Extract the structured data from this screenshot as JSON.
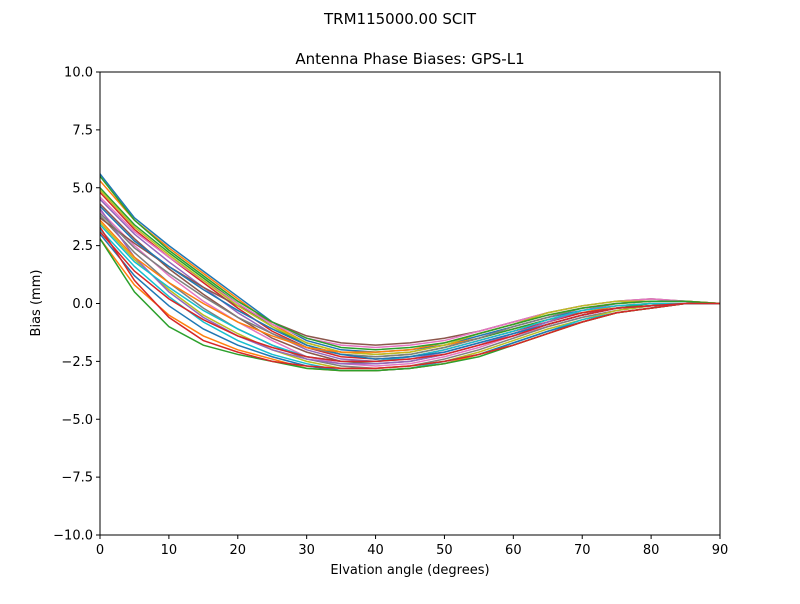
{
  "suptitle": "TRM115000.00    SCIT",
  "chart_data": {
    "type": "line",
    "title": "Antenna Phase Biases: GPS-L1",
    "xlabel": "Elvation angle (degrees)",
    "ylabel": "Bias (mm)",
    "xlim": [
      0,
      90
    ],
    "ylim": [
      -10,
      10
    ],
    "xticks": [
      0,
      10,
      20,
      30,
      40,
      50,
      60,
      70,
      80,
      90
    ],
    "yticks": [
      -10.0,
      -7.5,
      -5.0,
      -2.5,
      0.0,
      2.5,
      5.0,
      7.5,
      10.0
    ],
    "ytick_labels": [
      "−10.0",
      "−7.5",
      "−5.0",
      "−2.5",
      "0.0",
      "2.5",
      "5.0",
      "7.5",
      "10.0"
    ],
    "grid": false,
    "x": [
      0,
      5,
      10,
      15,
      20,
      25,
      30,
      35,
      40,
      45,
      50,
      55,
      60,
      65,
      70,
      75,
      80,
      85,
      90
    ],
    "series_colors": [
      "#1f77b4",
      "#ff7f0e",
      "#2ca02c",
      "#d62728",
      "#9467bd",
      "#8c564b",
      "#e377c2",
      "#7f7f7f",
      "#bcbd22",
      "#17becf"
    ],
    "series": [
      {
        "values": [
          5.6,
          3.7,
          2.5,
          1.4,
          0.3,
          -0.8,
          -1.6,
          -2.0,
          -2.1,
          -2.0,
          -1.8,
          -1.4,
          -1.0,
          -0.6,
          -0.3,
          -0.1,
          0.0,
          0.0,
          0.0
        ]
      },
      {
        "values": [
          5.3,
          3.6,
          2.4,
          1.3,
          0.2,
          -0.9,
          -1.7,
          -2.1,
          -2.2,
          -2.1,
          -1.8,
          -1.5,
          -1.1,
          -0.7,
          -0.4,
          -0.1,
          0.0,
          0.0,
          0.0
        ]
      },
      {
        "values": [
          5.0,
          3.4,
          2.2,
          1.1,
          0.0,
          -1.0,
          -1.8,
          -2.2,
          -2.3,
          -2.2,
          -1.9,
          -1.5,
          -1.1,
          -0.7,
          -0.4,
          -0.2,
          0.0,
          0.0,
          0.0
        ]
      },
      {
        "values": [
          4.8,
          3.2,
          2.0,
          0.9,
          -0.2,
          -1.2,
          -1.9,
          -2.3,
          -2.4,
          -2.3,
          -2.0,
          -1.6,
          -1.2,
          -0.8,
          -0.4,
          -0.2,
          -0.1,
          0.0,
          0.0
        ]
      },
      {
        "values": [
          4.5,
          3.0,
          1.8,
          0.7,
          -0.4,
          -1.3,
          -2.0,
          -2.4,
          -2.5,
          -2.4,
          -2.1,
          -1.7,
          -1.3,
          -0.9,
          -0.5,
          -0.2,
          -0.1,
          0.0,
          0.0
        ]
      },
      {
        "values": [
          4.3,
          2.8,
          1.5,
          0.4,
          -0.6,
          -1.5,
          -2.1,
          -2.5,
          -2.6,
          -2.5,
          -2.2,
          -1.8,
          -1.4,
          -0.9,
          -0.5,
          -0.2,
          -0.1,
          0.0,
          0.0
        ]
      },
      {
        "values": [
          4.0,
          2.5,
          1.2,
          0.1,
          -0.8,
          -1.6,
          -2.3,
          -2.6,
          -2.7,
          -2.6,
          -2.3,
          -1.9,
          -1.4,
          -1.0,
          -0.6,
          -0.3,
          -0.1,
          0.0,
          0.0
        ]
      },
      {
        "values": [
          3.8,
          2.2,
          0.9,
          -0.2,
          -1.1,
          -1.8,
          -2.4,
          -2.7,
          -2.8,
          -2.7,
          -2.4,
          -2.0,
          -1.5,
          -1.0,
          -0.6,
          -0.3,
          -0.1,
          0.0,
          0.0
        ]
      },
      {
        "values": [
          3.5,
          1.9,
          0.6,
          -0.5,
          -1.3,
          -2.0,
          -2.5,
          -2.8,
          -2.8,
          -2.7,
          -2.5,
          -2.1,
          -1.6,
          -1.1,
          -0.7,
          -0.3,
          -0.1,
          0.0,
          0.0
        ]
      },
      {
        "values": [
          3.2,
          1.6,
          0.3,
          -0.8,
          -1.6,
          -2.2,
          -2.6,
          -2.9,
          -2.9,
          -2.8,
          -2.5,
          -2.2,
          -1.7,
          -1.2,
          -0.7,
          -0.4,
          -0.2,
          0.0,
          0.0
        ]
      },
      {
        "values": [
          3.0,
          1.2,
          -0.1,
          -1.1,
          -1.8,
          -2.3,
          -2.7,
          -2.9,
          -2.9,
          -2.8,
          -2.6,
          -2.2,
          -1.7,
          -1.2,
          -0.8,
          -0.4,
          -0.2,
          0.0,
          0.0
        ]
      },
      {
        "values": [
          2.8,
          0.8,
          -0.5,
          -1.4,
          -2.0,
          -2.4,
          -2.8,
          -2.9,
          -2.9,
          -2.8,
          -2.6,
          -2.2,
          -1.8,
          -1.3,
          -0.8,
          -0.4,
          -0.2,
          0.0,
          0.0
        ]
      },
      {
        "values": [
          2.8,
          0.5,
          -1.0,
          -1.8,
          -2.2,
          -2.5,
          -2.8,
          -2.9,
          -2.9,
          -2.8,
          -2.6,
          -2.3,
          -1.8,
          -1.3,
          -0.8,
          -0.4,
          -0.2,
          0.0,
          0.0
        ]
      },
      {
        "values": [
          3.3,
          1.0,
          -0.6,
          -1.6,
          -2.1,
          -2.5,
          -2.7,
          -2.8,
          -2.8,
          -2.7,
          -2.5,
          -2.2,
          -1.8,
          -1.3,
          -0.8,
          -0.4,
          -0.2,
          0.0,
          0.0
        ]
      },
      {
        "values": [
          4.1,
          2.0,
          0.5,
          -0.6,
          -1.4,
          -2.0,
          -2.4,
          -2.6,
          -2.6,
          -2.5,
          -2.2,
          -1.8,
          -1.3,
          -0.8,
          -0.3,
          0.0,
          0.1,
          0.1,
          0.0
        ]
      },
      {
        "values": [
          3.7,
          2.6,
          1.6,
          0.7,
          -0.1,
          -0.8,
          -1.4,
          -1.7,
          -1.8,
          -1.7,
          -1.5,
          -1.2,
          -0.8,
          -0.4,
          -0.1,
          0.1,
          0.2,
          0.1,
          0.0
        ]
      },
      {
        "values": [
          4.6,
          3.1,
          2.0,
          1.0,
          0.0,
          -0.9,
          -1.5,
          -1.8,
          -1.9,
          -1.8,
          -1.6,
          -1.2,
          -0.8,
          -0.4,
          -0.1,
          0.1,
          0.2,
          0.1,
          0.0
        ]
      },
      {
        "values": [
          3.9,
          2.4,
          1.3,
          0.3,
          -0.6,
          -1.3,
          -1.9,
          -2.2,
          -2.3,
          -2.2,
          -1.9,
          -1.5,
          -1.0,
          -0.6,
          -0.2,
          0.0,
          0.1,
          0.1,
          0.0
        ]
      },
      {
        "values": [
          4.9,
          3.3,
          2.1,
          1.0,
          -0.1,
          -1.0,
          -1.7,
          -2.1,
          -2.2,
          -2.1,
          -1.8,
          -1.3,
          -0.9,
          -0.4,
          -0.1,
          0.1,
          0.1,
          0.1,
          0.0
        ]
      },
      {
        "values": [
          3.4,
          1.8,
          0.7,
          -0.3,
          -1.1,
          -1.8,
          -2.3,
          -2.5,
          -2.5,
          -2.3,
          -2.0,
          -1.6,
          -1.2,
          -0.7,
          -0.3,
          -0.1,
          0.0,
          0.0,
          0.0
        ]
      },
      {
        "values": [
          4.2,
          2.7,
          1.6,
          0.6,
          -0.3,
          -1.1,
          -1.8,
          -2.2,
          -2.4,
          -2.3,
          -2.1,
          -1.7,
          -1.3,
          -0.9,
          -0.5,
          -0.2,
          -0.1,
          0.0,
          0.0
        ]
      },
      {
        "values": [
          3.6,
          2.0,
          0.9,
          0.0,
          -0.8,
          -1.4,
          -1.9,
          -2.1,
          -2.1,
          -2.0,
          -1.7,
          -1.3,
          -0.9,
          -0.5,
          -0.2,
          0.0,
          0.1,
          0.1,
          0.0
        ]
      },
      {
        "values": [
          5.5,
          3.6,
          2.3,
          1.2,
          0.1,
          -0.8,
          -1.5,
          -1.9,
          -2.0,
          -1.9,
          -1.7,
          -1.3,
          -0.9,
          -0.5,
          -0.2,
          0.0,
          0.1,
          0.1,
          0.0
        ]
      },
      {
        "values": [
          3.1,
          1.4,
          0.2,
          -0.7,
          -1.4,
          -1.9,
          -2.3,
          -2.5,
          -2.5,
          -2.4,
          -2.2,
          -1.8,
          -1.4,
          -0.9,
          -0.5,
          -0.2,
          -0.1,
          0.0,
          0.0
        ]
      }
    ]
  }
}
